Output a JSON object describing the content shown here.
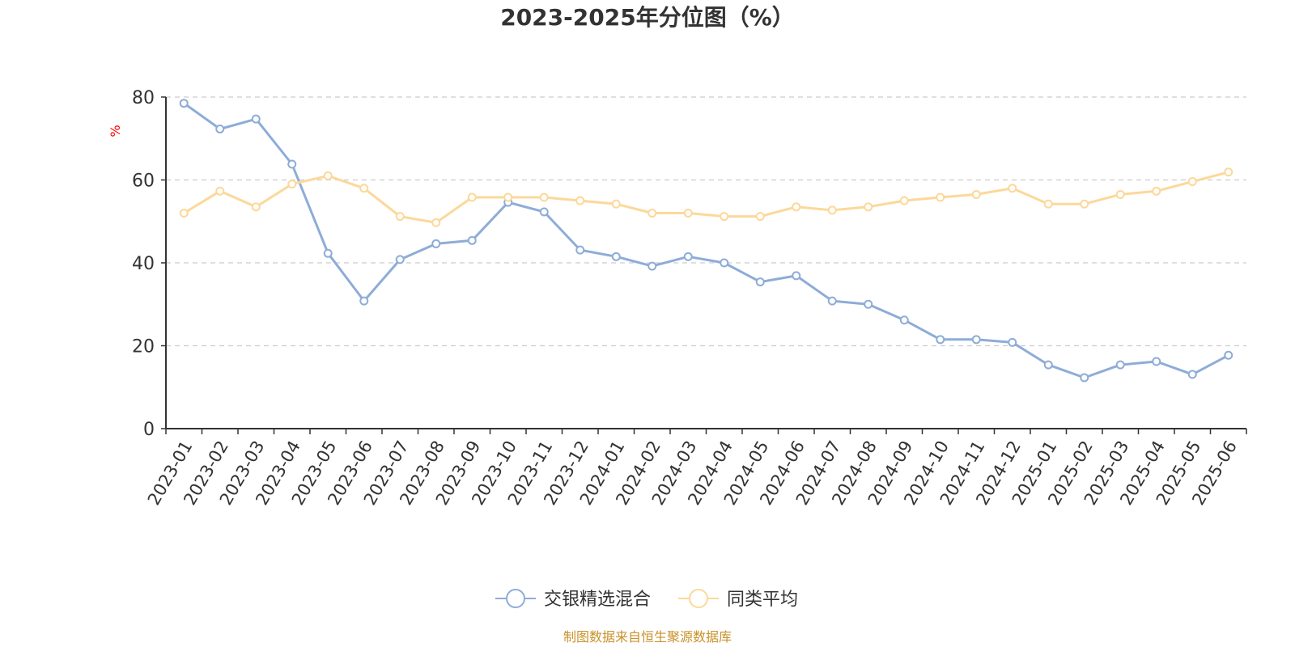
{
  "chart_data": {
    "type": "line",
    "title": "2023-2025年分位图（%）",
    "ylabel": "%",
    "xlabel": "",
    "ylim": [
      0,
      80
    ],
    "yticks": [
      0,
      20,
      40,
      60,
      80
    ],
    "grid": true,
    "legend_position": "bottom",
    "categories": [
      "2023-01",
      "2023-02",
      "2023-03",
      "2023-04",
      "2023-05",
      "2023-06",
      "2023-07",
      "2023-08",
      "2023-09",
      "2023-10",
      "2023-11",
      "2023-12",
      "2024-01",
      "2024-02",
      "2024-03",
      "2024-04",
      "2024-05",
      "2024-06",
      "2024-07",
      "2024-08",
      "2024-09",
      "2024-10",
      "2024-11",
      "2024-12",
      "2025-01",
      "2025-02",
      "2025-03",
      "2025-04",
      "2025-05",
      "2025-06"
    ],
    "series": [
      {
        "name": "交银精选混合",
        "color": "#8eacd8",
        "values": [
          78.5,
          72.3,
          74.7,
          63.8,
          42.3,
          30.8,
          40.8,
          44.6,
          45.4,
          54.6,
          52.3,
          43.1,
          41.5,
          39.2,
          41.5,
          40.0,
          35.4,
          36.9,
          30.8,
          30.0,
          26.2,
          21.5,
          21.5,
          20.8,
          15.4,
          12.3,
          15.4,
          16.2,
          13.1,
          17.7
        ]
      },
      {
        "name": "同类平均",
        "color": "#fcd899",
        "values": [
          52.0,
          57.3,
          53.5,
          59.0,
          61.0,
          58.0,
          51.2,
          49.7,
          55.8,
          55.8,
          55.8,
          55.0,
          54.2,
          52.0,
          52.0,
          51.2,
          51.2,
          53.5,
          52.7,
          53.5,
          55.0,
          55.8,
          56.5,
          58.0,
          54.2,
          54.2,
          56.5,
          57.3,
          59.6,
          61.9
        ]
      }
    ]
  },
  "source_note": "制图数据来自恒生聚源数据库",
  "colors": {
    "axis": "#333333",
    "grid": "#cccccc",
    "ylabel": "#ff0000",
    "source": "#c8922a"
  }
}
